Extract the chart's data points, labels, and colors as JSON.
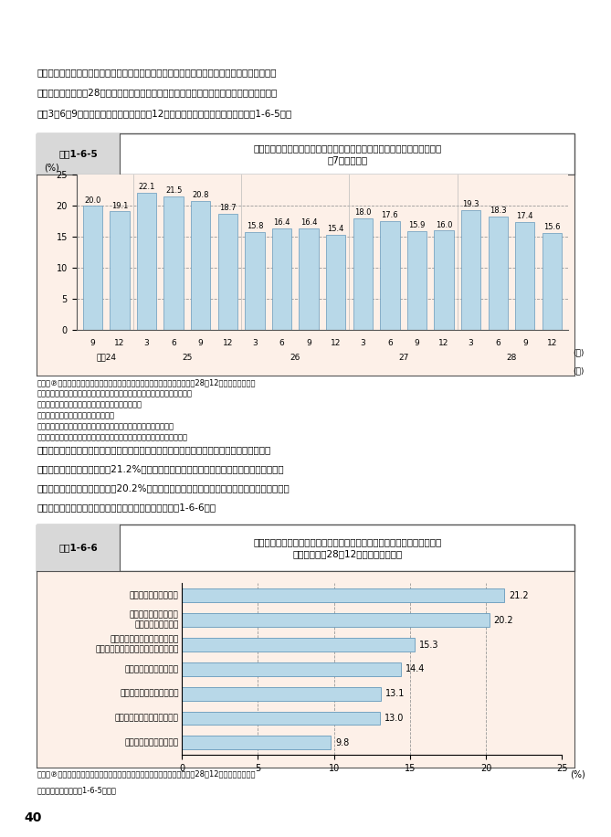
{
  "page_bg": "#ffffff",
  "chart_bg": "#fdf0e8",
  "intro_text_lines": [
    "　住宅の購入や建築・リフォーム（以下、「購入等」という。）の意向について、民間企業の",
    "調査によると、平成28年は前年同期比で、「今が購入等のタイミング」と感じている人の割",
    "合は3、6、9月調査では高かったものの、12月調査は前年同期を下回った（図表1-6-5）。"
  ],
  "chart1_label_id": "図表1-6-5",
  "chart1_title": "今が住宅の購入や建築・リフォームのタイミングだと感じている人の割合\n（7大都市圈）",
  "chart1_ylabel": "(%)",
  "chart1_ylim": [
    0,
    25
  ],
  "chart1_yticks": [
    0,
    5,
    10,
    15,
    20,
    25
  ],
  "chart1_values": [
    20.0,
    19.1,
    22.1,
    21.5,
    20.8,
    18.7,
    15.8,
    16.4,
    16.4,
    15.4,
    18.0,
    17.6,
    15.9,
    16.0,
    19.3,
    18.3,
    17.4,
    15.6
  ],
  "chart1_months": [
    "9",
    "12",
    "3",
    "6",
    "9",
    "12",
    "3",
    "6",
    "9",
    "12",
    "3",
    "6",
    "9",
    "12",
    "3",
    "6",
    "9",
    "12"
  ],
  "chart1_years": [
    "平成24",
    "25",
    "26",
    "27",
    "28"
  ],
  "chart1_year_centers": [
    0.5,
    3.5,
    7.5,
    11.5,
    15.5
  ],
  "chart1_bar_color": "#b8d8e8",
  "chart1_bar_edge": "#6699bb",
  "chart1_source_lines": [
    "資料：℗リクルート住まいカンパニー「『住まいの買いどき感』調査（平成28年12月度）」より作成",
    "注１：七大都市圈：首都圈、札幌市、仙台市、東海、関西、広峳市、福岡市",
    "　　　首都圈：埼玉県、千葉県、東京都、神奈川県",
    "　　　東海：愛知県、岐阜県、三重県",
    "　　　関西：滋賀県、京都府、大阪府、兵庫県、奈良県、和歌山県",
    "注２：住宅取得の意向がない人や未定としている人以外を対象としている"
  ],
  "middle_text_lines": [
    "　「購入等のタイミング」と感じている理由については、同月の調査において「お金が借り",
    "やすいから」と回答した者が21.2%と最も高かった一方、「消費税率の引き上げが予定され",
    "ているから」と回答した者も中20.2%を占め、今後の消費税率の引上げの見込みが家計の意識",
    "に一定の影響をもたらしていることがうかがえる（図表1-6-6）。"
  ],
  "chart2_label_id": "図表1-6-6",
  "chart2_title": "住宅を買うタイミング、建築・リフォームするタイミングだと感じている\n理由　（平成28年12月、７大都市圈）",
  "chart2_categories": [
    "お金が借りやすいから",
    "消費税率の引き上げが\n予定されているから",
    "今のほうが住宅ローン減税など\n税制優遇のメリットがありそうだから",
    "金利が上がりそうだから",
    "景況感が上昇しているから",
    "住宅価格が上昇しそうだから",
    "物価が上昇しそうだから"
  ],
  "chart2_values": [
    21.2,
    20.2,
    15.3,
    14.4,
    13.1,
    13.0,
    9.8
  ],
  "chart2_bar_color": "#b8d8e8",
  "chart2_bar_edge": "#6699bb",
  "chart2_xlim": [
    0,
    25
  ],
  "chart2_xticks": [
    0,
    5,
    10,
    15,
    20,
    25
  ],
  "chart2_xlabel": "(%)",
  "chart2_source_lines": [
    "資料：℗リクルート住まいカンパニー「『住まいの買いどき感』調査（平成28年12月度）」より作成",
    "　注：圈域区分は図表1-6-5に同じ"
  ],
  "page_number": "40"
}
